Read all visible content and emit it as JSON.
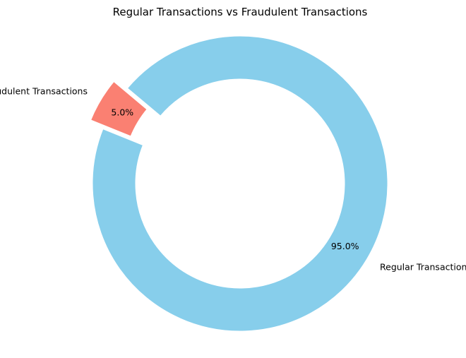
{
  "chart_data": {
    "type": "pie",
    "variant": "donut",
    "title": "Regular Transactions vs Fraudulent Transactions",
    "slices": [
      {
        "label": "Regular Transactions",
        "value": 95.0,
        "percent_label": "95.0%",
        "color": "#87CEEB",
        "exploded": false
      },
      {
        "label": "Fraudulent Transactions",
        "value": 5.0,
        "percent_label": "5.0%",
        "color": "#FA8072",
        "exploded": true
      }
    ],
    "start_angle_deg": 140,
    "direction": "clockwise",
    "legend": "none"
  }
}
